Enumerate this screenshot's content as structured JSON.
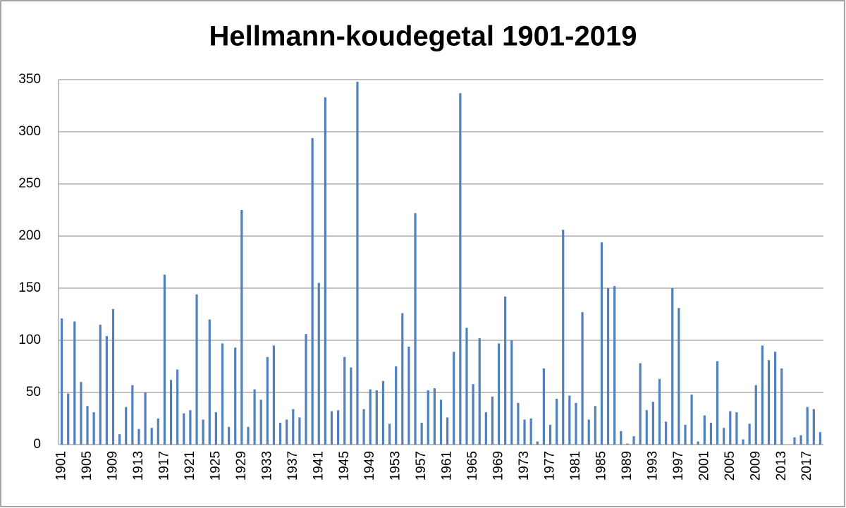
{
  "chart_data": {
    "type": "bar",
    "title": "Hellmann-koudegetal 1901-2019",
    "categories": [
      "1901",
      null,
      null,
      null,
      "1905",
      null,
      null,
      null,
      "1909",
      null,
      null,
      null,
      "1913",
      null,
      null,
      null,
      "1917",
      null,
      null,
      null,
      "1921",
      null,
      null,
      null,
      "1925",
      null,
      null,
      null,
      "1929",
      null,
      null,
      null,
      "1933",
      null,
      null,
      null,
      "1937",
      null,
      null,
      null,
      "1941",
      null,
      null,
      null,
      "1945",
      null,
      null,
      null,
      "1949",
      null,
      null,
      null,
      "1953",
      null,
      null,
      null,
      "1957",
      null,
      null,
      null,
      "1961",
      null,
      null,
      null,
      "1965",
      null,
      null,
      null,
      "1969",
      null,
      null,
      null,
      "1973",
      null,
      null,
      null,
      "1977",
      null,
      null,
      null,
      "1981",
      null,
      null,
      null,
      "1985",
      null,
      null,
      null,
      "1989",
      null,
      null,
      null,
      "1993",
      null,
      null,
      null,
      "1997",
      null,
      null,
      null,
      "2001",
      null,
      null,
      null,
      "2005",
      null,
      null,
      null,
      "2009",
      null,
      null,
      null,
      "2013",
      null,
      null,
      null,
      "2017",
      null,
      null
    ],
    "values": [
      121,
      49,
      118,
      60,
      37,
      31,
      115,
      104,
      130,
      10,
      36,
      57,
      15,
      50,
      16,
      25,
      163,
      62,
      72,
      30,
      33,
      144,
      24,
      120,
      31,
      97,
      17,
      93,
      225,
      17,
      53,
      43,
      84,
      95,
      21,
      24,
      34,
      26,
      106,
      294,
      155,
      333,
      32,
      33,
      84,
      74,
      348,
      34,
      53,
      52,
      61,
      20,
      75,
      126,
      94,
      222,
      21,
      52,
      54,
      43,
      26,
      89,
      337,
      112,
      58,
      102,
      31,
      46,
      97,
      142,
      100,
      40,
      24,
      25,
      3,
      73,
      19,
      44,
      206,
      47,
      40,
      127,
      24,
      37,
      194,
      150,
      152,
      13,
      1,
      8,
      78,
      33,
      41,
      63,
      22,
      150,
      131,
      19,
      48,
      3,
      28,
      21,
      80,
      16,
      32,
      31,
      5,
      20,
      57,
      95,
      81,
      89,
      73,
      0,
      7,
      9,
      36,
      34,
      12
    ],
    "color": "#4f81bd",
    "ylim": [
      0,
      350
    ],
    "yticks": [
      0,
      50,
      100,
      150,
      200,
      250,
      300,
      350
    ],
    "grid": true
  }
}
